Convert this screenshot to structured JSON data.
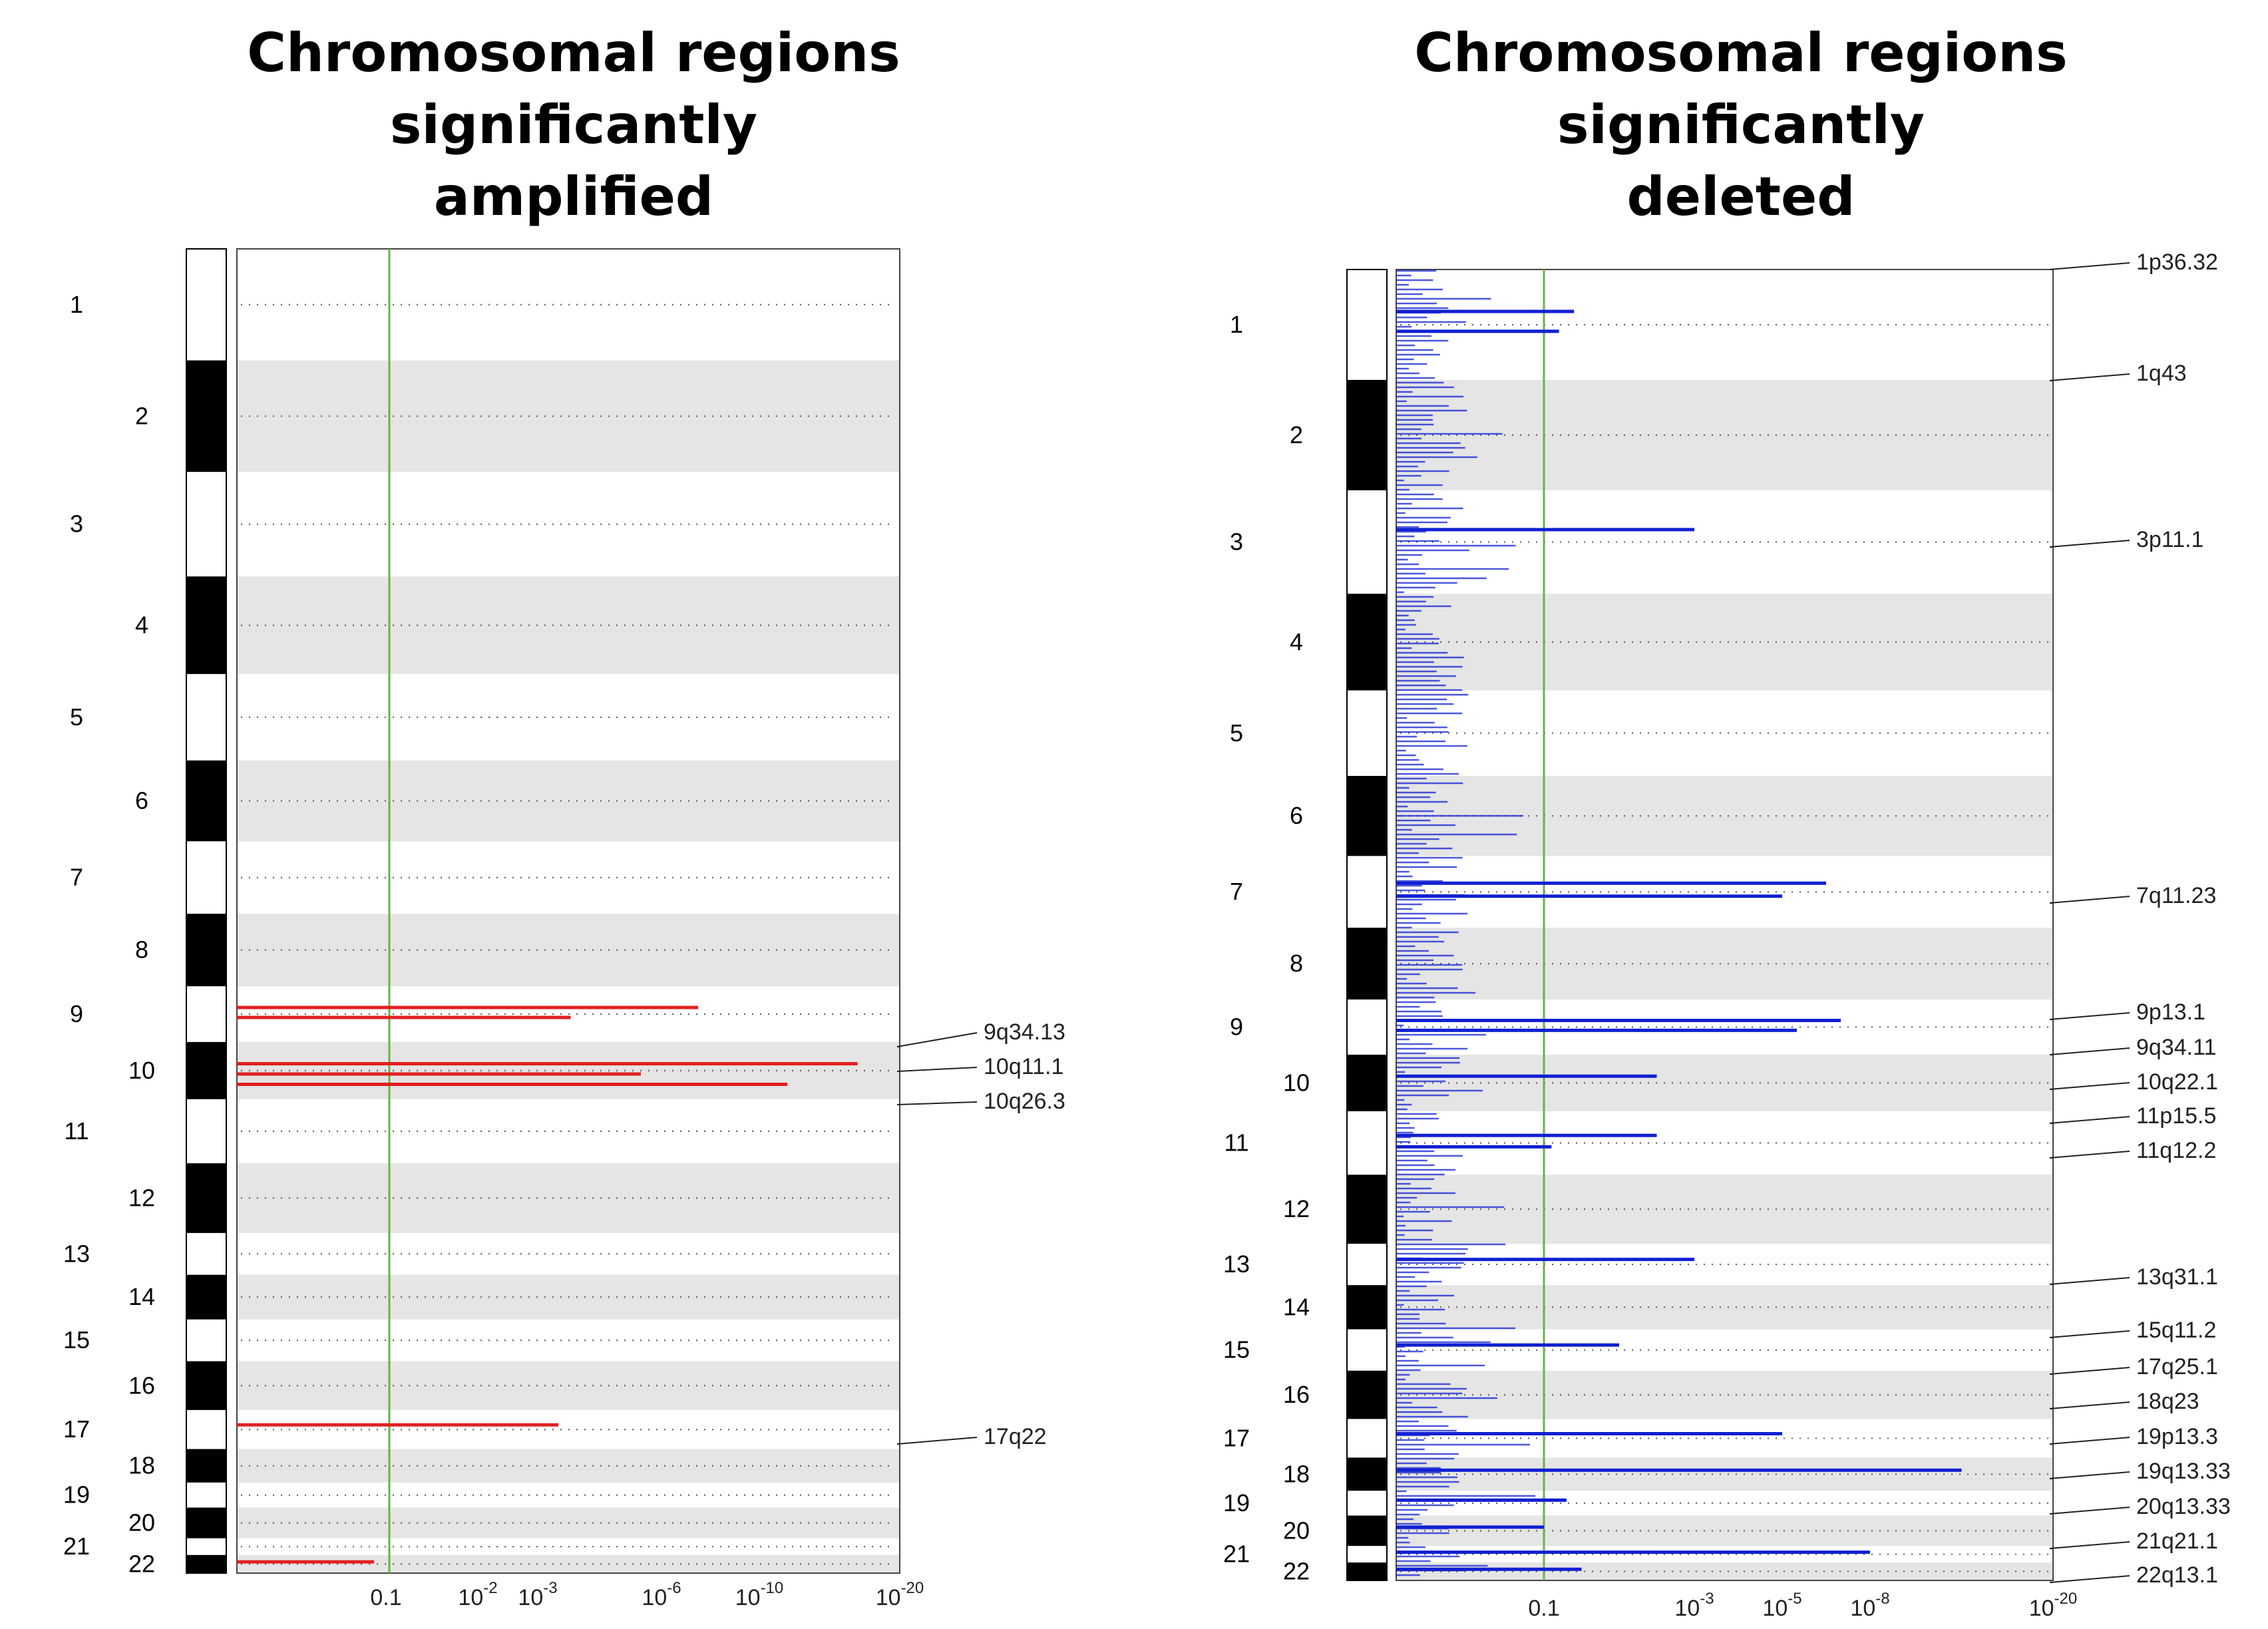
{
  "titles": {
    "amplified_line1": "Chromosomal regions significantly",
    "amplified_line2": "amplified",
    "deleted_line1": "Chromosomal regions significantly",
    "deleted_line2": "deleted"
  },
  "colors": {
    "amplified": "#e02020",
    "deleted": "#1020d0",
    "threshold": "#6ab04c",
    "band": "#e5e5e5",
    "chrom_dark": "#000000"
  },
  "chart_data": [
    {
      "type": "bar",
      "orientation": "horizontal",
      "title": "Chromosomal regions significantly amplified",
      "x_scale": "log (q-value, decreasing to the right)",
      "x_ticks": [
        "0.1",
        "10",
        "10",
        "10",
        "10",
        "10"
      ],
      "x_tick_exponents": [
        "",
        "-2",
        "-3",
        "-6",
        "-10",
        "-20"
      ],
      "threshold_q": 0.1,
      "chromosomes": [
        "1",
        "2",
        "3",
        "4",
        "5",
        "6",
        "7",
        "8",
        "9",
        "10",
        "11",
        "12",
        "13",
        "14",
        "15",
        "16",
        "17",
        "18",
        "19",
        "20",
        "21",
        "22"
      ],
      "peak_labels": [
        "9q34.13",
        "10q11.1",
        "10q26.3",
        "17q22"
      ],
      "peaks": [
        {
          "chrom": "9",
          "neg_log10_q": 7.5
        },
        {
          "chrom": "9",
          "neg_log10_q": 3.8
        },
        {
          "chrom": "10",
          "neg_log10_q": 17.0
        },
        {
          "chrom": "10",
          "neg_log10_q": 5.5
        },
        {
          "chrom": "10",
          "neg_log10_q": 12.0
        },
        {
          "chrom": "17",
          "neg_log10_q": 3.5
        },
        {
          "chrom": "22",
          "neg_log10_q": 0.9
        }
      ]
    },
    {
      "type": "bar",
      "orientation": "horizontal",
      "title": "Chromosomal regions significantly deleted",
      "x_scale": "log (q-value, decreasing to the right)",
      "x_ticks": [
        "0.1",
        "10",
        "10",
        "10",
        "10"
      ],
      "x_tick_exponents": [
        "",
        "-3",
        "-5",
        "-8",
        "-20"
      ],
      "threshold_q": 0.1,
      "chromosomes": [
        "1",
        "2",
        "3",
        "4",
        "5",
        "6",
        "7",
        "8",
        "9",
        "10",
        "11",
        "12",
        "13",
        "14",
        "15",
        "16",
        "17",
        "18",
        "19",
        "20",
        "21",
        "22"
      ],
      "peak_labels": [
        "1p36.32",
        "1q43",
        "3p11.1",
        "7q11.23",
        "9p13.1",
        "9q34.11",
        "10q22.1",
        "11p15.5",
        "11q12.2",
        "13q31.1",
        "15q11.2",
        "17q25.1",
        "18q23",
        "19p13.3",
        "19q13.33",
        "20q13.33",
        "21q21.1",
        "22q13.1"
      ],
      "peaks": [
        {
          "chrom": "1",
          "neg_log10_q": 1.4
        },
        {
          "chrom": "1",
          "neg_log10_q": 1.2
        },
        {
          "chrom": "3",
          "neg_log10_q": 3.0
        },
        {
          "chrom": "7",
          "neg_log10_q": 6.5
        },
        {
          "chrom": "7",
          "neg_log10_q": 5.0
        },
        {
          "chrom": "9",
          "neg_log10_q": 7.0
        },
        {
          "chrom": "9",
          "neg_log10_q": 5.5
        },
        {
          "chrom": "10",
          "neg_log10_q": 2.5
        },
        {
          "chrom": "11",
          "neg_log10_q": 2.5
        },
        {
          "chrom": "11",
          "neg_log10_q": 1.1
        },
        {
          "chrom": "13",
          "neg_log10_q": 3.0
        },
        {
          "chrom": "15",
          "neg_log10_q": 2.0
        },
        {
          "chrom": "17",
          "neg_log10_q": 5.0
        },
        {
          "chrom": "18",
          "neg_log10_q": 14.0
        },
        {
          "chrom": "19",
          "neg_log10_q": 1.3
        },
        {
          "chrom": "20",
          "neg_log10_q": 1.0
        },
        {
          "chrom": "21",
          "neg_log10_q": 8.0
        },
        {
          "chrom": "22",
          "neg_log10_q": 1.5
        }
      ]
    }
  ]
}
